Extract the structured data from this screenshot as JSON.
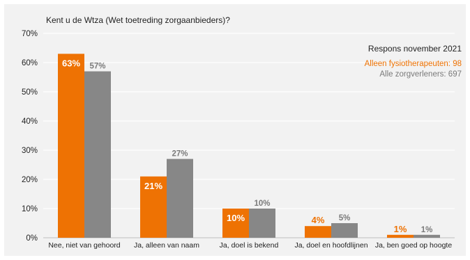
{
  "colors": {
    "fysio": "#ee7203",
    "alle": "#878787",
    "panel_bg": "#f2f2f2",
    "gridline": "#ffffff"
  },
  "chart_data": {
    "type": "bar",
    "title": "Kent u de Wtza (Wet toetreding zorgaanbieders)?",
    "categories": [
      "Nee, niet van gehoord",
      "Ja, alleen van naam",
      "Ja, doel is bekend",
      "Ja, doel en hoofdlijnen",
      "Ja, ben goed op hoogte"
    ],
    "series": [
      {
        "name": "Alleen fysiotherapeuten: 98",
        "values": [
          63,
          21,
          10,
          4,
          1
        ],
        "labels": [
          "63%",
          "21%",
          "10%",
          "4%",
          "1%"
        ],
        "color": "#ee7203"
      },
      {
        "name": "Alle zorgverleners: 697",
        "values": [
          57,
          27,
          10,
          5,
          1
        ],
        "labels": [
          "57%",
          "27%",
          "10%",
          "5%",
          "1%"
        ],
        "color": "#878787"
      }
    ],
    "yticks": [
      "0%",
      "10%",
      "20%",
      "30%",
      "40%",
      "50%",
      "60%",
      "70%"
    ],
    "ylim": [
      0,
      70
    ],
    "legend_title": "Respons november 2021",
    "legend_position": "top-right",
    "grid": true
  }
}
